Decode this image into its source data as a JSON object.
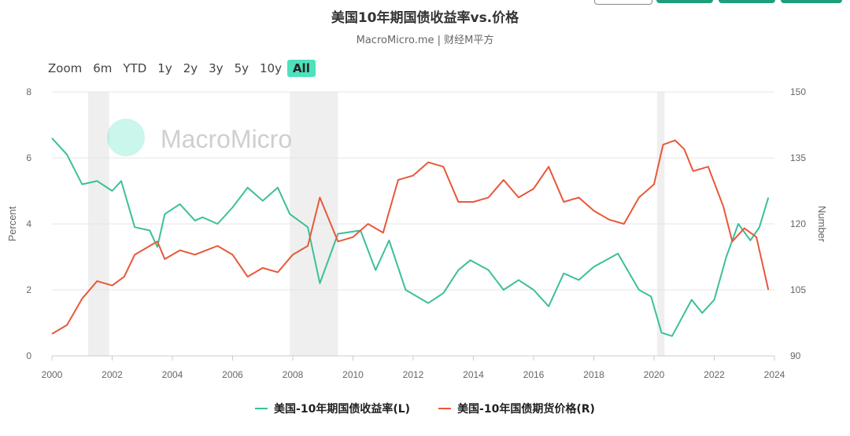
{
  "title": "美国10年期国债收益率vs.价格",
  "subtitle": "MacroMicro.me | 财经M平方",
  "watermark": "MacroMicro",
  "range_selector": [
    {
      "label": "Zoom",
      "active": false
    },
    {
      "label": "6m",
      "active": false
    },
    {
      "label": "YTD",
      "active": false
    },
    {
      "label": "1y",
      "active": false
    },
    {
      "label": "2y",
      "active": false
    },
    {
      "label": "3y",
      "active": false
    },
    {
      "label": "5y",
      "active": false
    },
    {
      "label": "10y",
      "active": false
    },
    {
      "label": "All",
      "active": true
    }
  ],
  "chart_data": {
    "type": "line",
    "xlim": [
      2000,
      2024
    ],
    "x_ticks": [
      "2000",
      "2002",
      "2004",
      "2006",
      "2008",
      "2010",
      "2012",
      "2014",
      "2016",
      "2018",
      "2020",
      "2022",
      "2024"
    ],
    "ylabel_left": "Percent",
    "ylim_left": [
      0,
      8
    ],
    "y_ticks_left": [
      "0",
      "2",
      "4",
      "6",
      "8"
    ],
    "ylabel_right": "Number",
    "ylim_right": [
      90,
      150
    ],
    "y_ticks_right": [
      "90",
      "105",
      "120",
      "135",
      "150"
    ],
    "grid": "horizontal",
    "legend_position": "bottom",
    "recessions": [
      [
        2001.2,
        2001.9
      ],
      [
        2007.9,
        2009.5
      ],
      [
        2020.1,
        2020.35
      ]
    ],
    "series": [
      {
        "name": "美国-10年期国债收益率(L)",
        "axis": "left",
        "color": "#3cbf9b",
        "x": [
          2000.0,
          2000.5,
          2001.0,
          2001.5,
          2002.0,
          2002.3,
          2002.75,
          2003.25,
          2003.5,
          2003.75,
          2004.25,
          2004.75,
          2005.0,
          2005.5,
          2006.0,
          2006.5,
          2007.0,
          2007.5,
          2007.9,
          2008.5,
          2008.9,
          2009.5,
          2010.25,
          2010.75,
          2011.2,
          2011.75,
          2012.5,
          2013.0,
          2013.5,
          2013.9,
          2014.5,
          2015.0,
          2015.5,
          2016.0,
          2016.5,
          2017.0,
          2017.5,
          2018.0,
          2018.8,
          2019.5,
          2019.9,
          2020.25,
          2020.6,
          2021.25,
          2021.6,
          2022.0,
          2022.4,
          2022.8,
          2023.2,
          2023.5,
          2023.8
        ],
        "values": [
          6.6,
          6.1,
          5.2,
          5.3,
          5.0,
          5.3,
          3.9,
          3.8,
          3.3,
          4.3,
          4.6,
          4.1,
          4.2,
          4.0,
          4.5,
          5.1,
          4.7,
          5.1,
          4.3,
          3.9,
          2.2,
          3.7,
          3.8,
          2.6,
          3.5,
          2.0,
          1.6,
          1.9,
          2.6,
          2.9,
          2.6,
          2.0,
          2.3,
          2.0,
          1.5,
          2.5,
          2.3,
          2.7,
          3.1,
          2.0,
          1.8,
          0.7,
          0.6,
          1.7,
          1.3,
          1.7,
          3.0,
          4.0,
          3.5,
          3.9,
          4.8
        ]
      },
      {
        "name": "美国-10年国债期货价格(R)",
        "axis": "right",
        "color": "#e8583a",
        "x": [
          2000.0,
          2000.5,
          2001.0,
          2001.5,
          2002.0,
          2002.4,
          2002.75,
          2003.5,
          2003.75,
          2004.25,
          2004.75,
          2005.5,
          2006.0,
          2006.5,
          2007.0,
          2007.5,
          2008.0,
          2008.5,
          2008.9,
          2009.5,
          2010.0,
          2010.5,
          2011.0,
          2011.5,
          2012.0,
          2012.5,
          2013.0,
          2013.5,
          2014.0,
          2014.5,
          2015.0,
          2015.5,
          2016.0,
          2016.5,
          2017.0,
          2017.5,
          2018.0,
          2018.5,
          2019.0,
          2019.5,
          2020.0,
          2020.3,
          2020.7,
          2021.0,
          2021.3,
          2021.8,
          2022.3,
          2022.6,
          2023.0,
          2023.4,
          2023.8
        ],
        "values": [
          95,
          97,
          103,
          107,
          106,
          108,
          113,
          116,
          112,
          114,
          113,
          115,
          113,
          108,
          110,
          109,
          113,
          115,
          126,
          116,
          117,
          120,
          118,
          130,
          131,
          134,
          133,
          125,
          125,
          126,
          130,
          126,
          128,
          133,
          125,
          126,
          123,
          121,
          120,
          126,
          129,
          138,
          139,
          137,
          132,
          133,
          124,
          116,
          119,
          117,
          105
        ]
      }
    ]
  },
  "legend": [
    "美国-10年期国债收益率(L)",
    "美国-10年国债期货价格(R)"
  ]
}
